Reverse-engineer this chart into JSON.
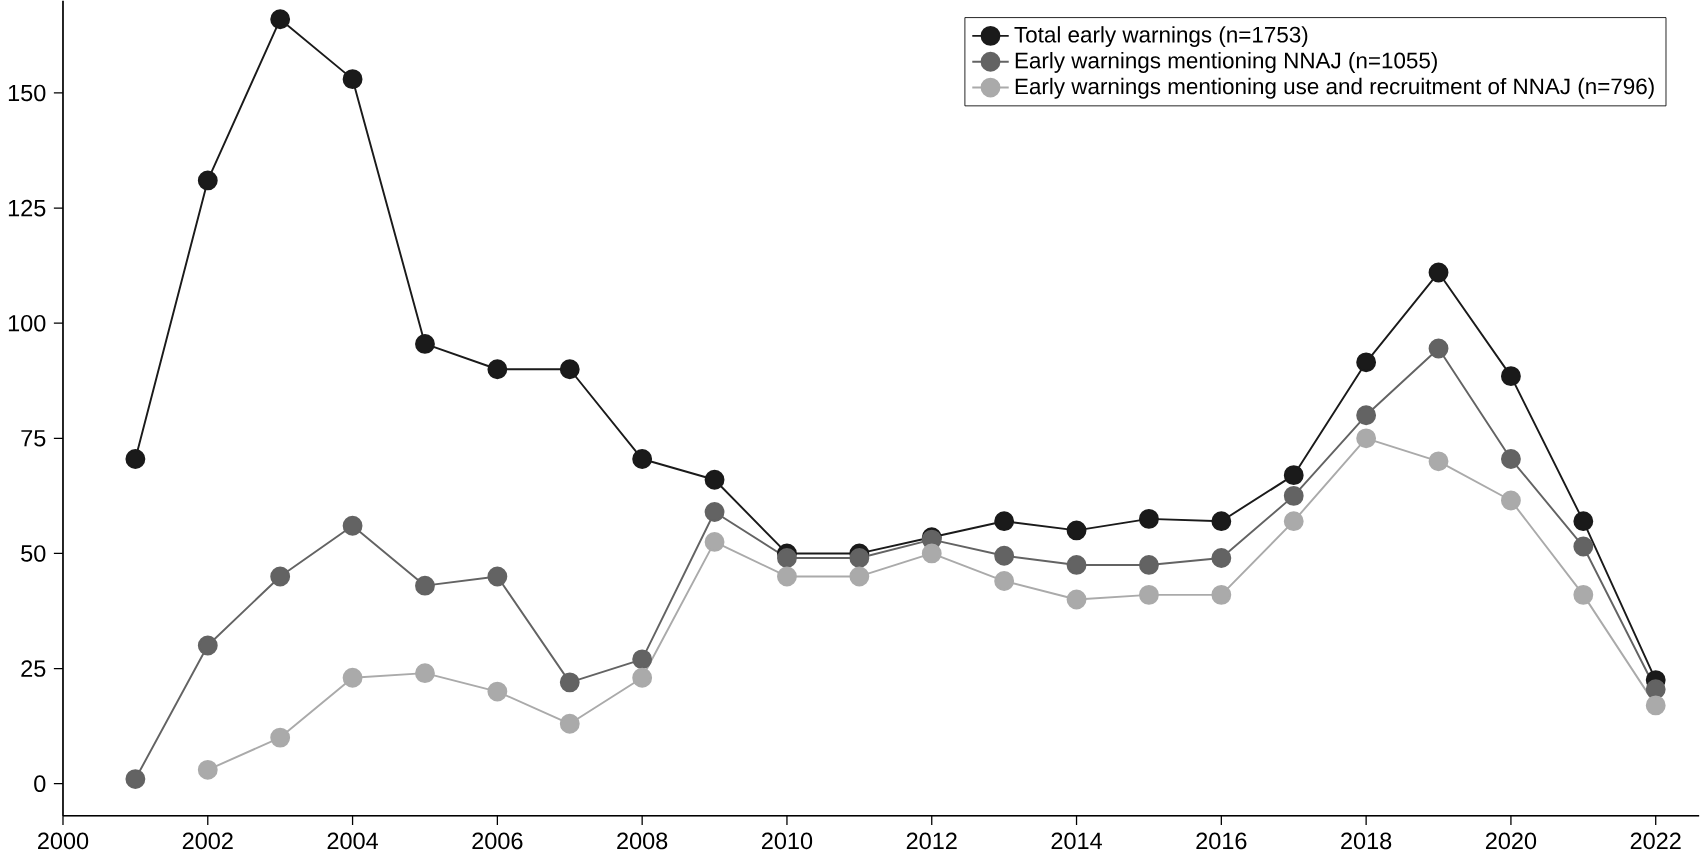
{
  "chart_data": {
    "type": "line",
    "marker": "circle",
    "legend": "top right",
    "x": [
      2001,
      2002,
      2003,
      2004,
      2005,
      2006,
      2007,
      2008,
      2009,
      2010,
      2011,
      2012,
      2013,
      2014,
      2015,
      2016,
      2017,
      2018,
      2019,
      2020,
      2021,
      2022
    ],
    "series": [
      {
        "name": "Total early warnings (n=1753)",
        "color": "#1a1a1a",
        "values": [
          70.5,
          131,
          166,
          153,
          95.5,
          90,
          90,
          70.5,
          66,
          50,
          50,
          53.5,
          57,
          55,
          57.5,
          57,
          67,
          91.5,
          111,
          88.5,
          57,
          22.5
        ]
      },
      {
        "name": "Early warnings mentioning NNAJ (n=1055)",
        "color": "#636363",
        "values": [
          1,
          30,
          45,
          56,
          43,
          45,
          22,
          27,
          59,
          49,
          49,
          53,
          49.5,
          47.5,
          47.5,
          49,
          62.5,
          80,
          94.5,
          70.5,
          51.5,
          20.5
        ]
      },
      {
        "name": "Early warnings mentioning use and recruitment of NNAJ (n=796)",
        "color": "#aaaaaa",
        "values": [
          null,
          3,
          10,
          23,
          24,
          20,
          13,
          23,
          52.5,
          45,
          45,
          50,
          44,
          40,
          41,
          41,
          57,
          75,
          70,
          61.5,
          41,
          17
        ]
      }
    ],
    "xlim": [
      2000,
      2022.6
    ],
    "ylim": [
      -7,
      170
    ],
    "xticks": [
      2000,
      2002,
      2004,
      2006,
      2008,
      2010,
      2012,
      2014,
      2016,
      2018,
      2020,
      2022
    ],
    "yticks": [
      0,
      25,
      50,
      75,
      100,
      125,
      150
    ]
  }
}
